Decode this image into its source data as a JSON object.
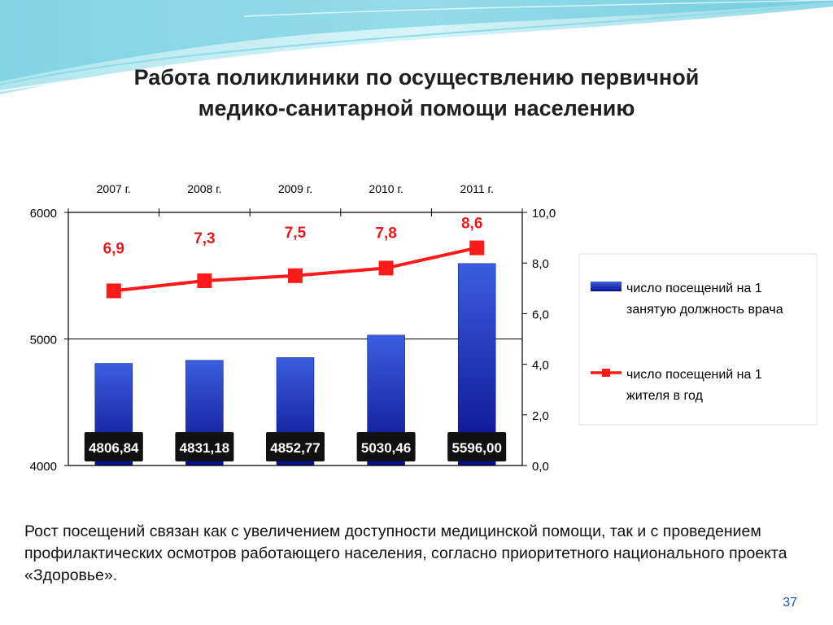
{
  "slide": {
    "title_line1": "Работа поликлиники по осуществлению первичной",
    "title_line2": "медико-санитарной помощи населению",
    "body_text": "Рост посещений связан как с увеличением доступности медицинской помощи, так и с проведением профилактических осмотров работающего населения, согласно приоритетного национального проекта «Здоровье».",
    "page_number": "37"
  },
  "colors": {
    "bar_top": "#3a5ee0",
    "bar_bottom": "#0a0f8c",
    "line": "#ff1a1a",
    "label_red": "#e8191b",
    "value_box": "#111111",
    "wave_light": "#a9e3ef",
    "wave_dark": "#2fb2c9"
  },
  "chart_data": {
    "type": "bar+line",
    "categories": [
      "2007 г.",
      "2008 г.",
      "2009 г.",
      "2010 г.",
      "2011 г."
    ],
    "series": [
      {
        "name": "число посещений на 1 занятую должность врача",
        "type": "bar",
        "axis": "left",
        "values": [
          4806.84,
          4831.18,
          4852.77,
          5030.46,
          5596.0
        ],
        "labels": [
          "4806,84",
          "4831,18",
          "4852,77",
          "5030,46",
          "5596,00"
        ]
      },
      {
        "name": "число посещений на 1 жителя в год",
        "type": "line",
        "axis": "right",
        "values": [
          6.9,
          7.3,
          7.5,
          7.8,
          8.6
        ],
        "labels": [
          "6,9",
          "7,3",
          "7,5",
          "7,8",
          "8,6"
        ]
      }
    ],
    "y_left": {
      "min": 4000,
      "max": 6000,
      "ticks": [
        "4000",
        "5000",
        "6000"
      ],
      "tick_values": [
        4000,
        5000,
        6000
      ]
    },
    "y_right": {
      "min": 0,
      "max": 10,
      "ticks": [
        "0,0",
        "2,0",
        "4,0",
        "6,0",
        "8,0",
        "10,0"
      ],
      "tick_values": [
        0,
        2,
        4,
        6,
        8,
        10
      ]
    },
    "x_axis_position": "top",
    "gridlines": "horizontal at left-axis ticks",
    "legend": {
      "position": "right",
      "entries": [
        {
          "line1": "число посещений на 1",
          "line2": "занятую должность врача",
          "marker": "bar"
        },
        {
          "line1": "число посещений на 1",
          "line2": "жителя в год",
          "marker": "line"
        }
      ]
    }
  }
}
